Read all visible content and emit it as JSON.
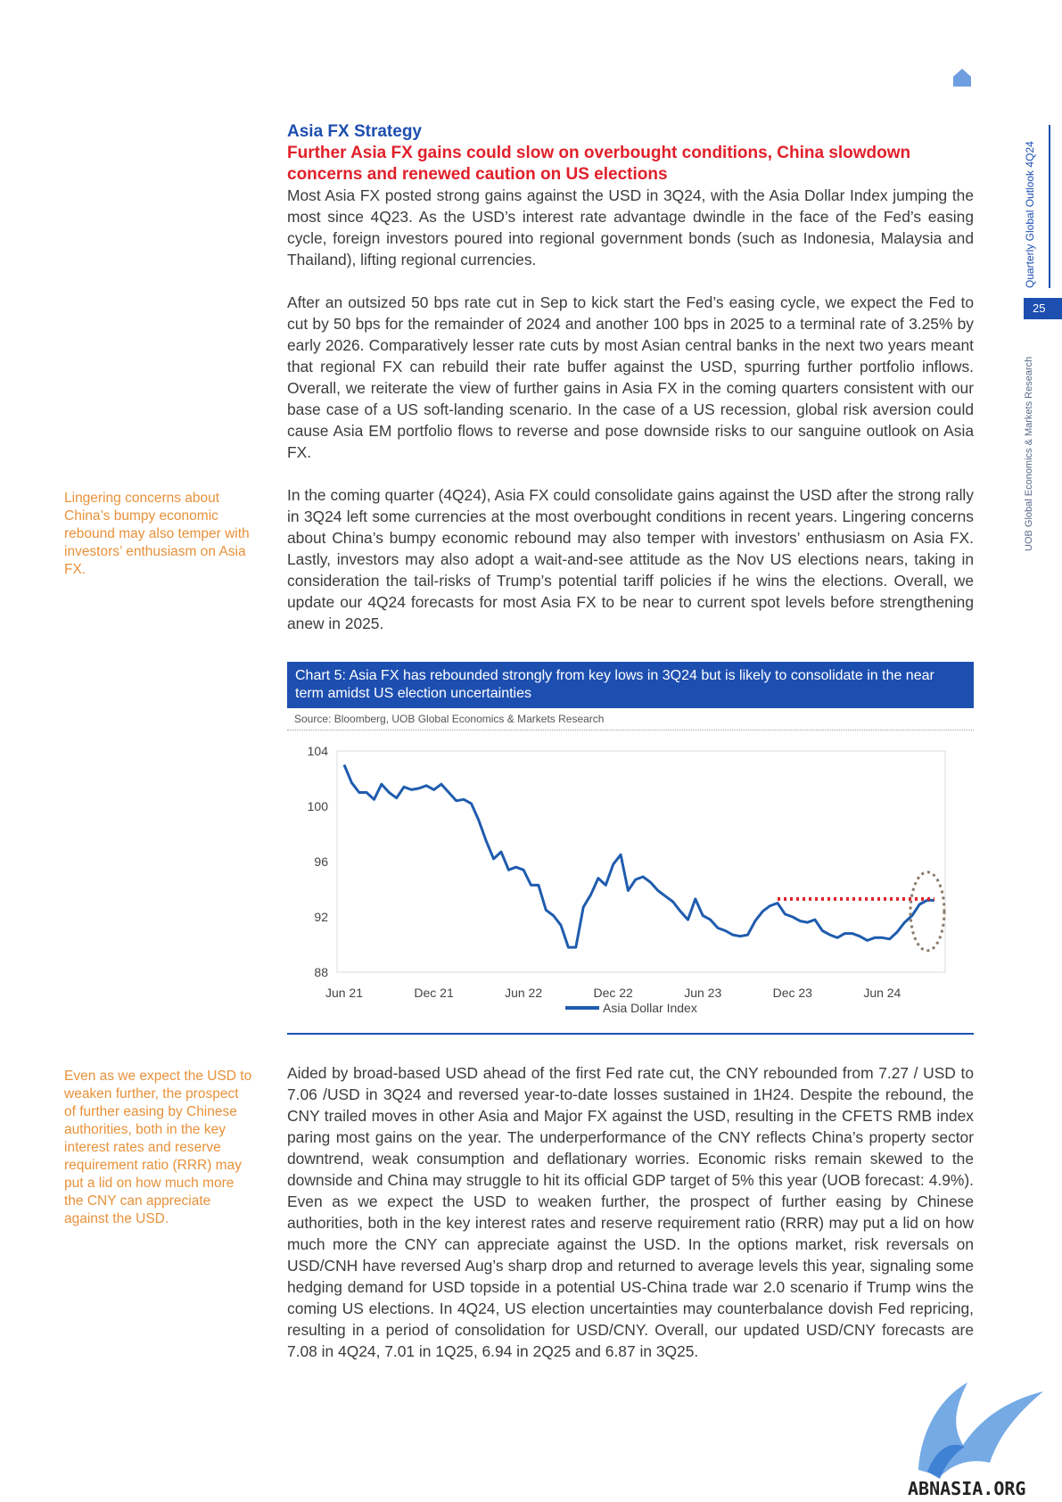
{
  "header": {
    "side_title": "Quarterly Global Outlook 4Q24",
    "page_number": "25",
    "side_subtitle": "UOB Global Economics & Markets Research"
  },
  "section": {
    "title": "Asia FX Strategy",
    "headline": "Further Asia FX gains could slow on overbought conditions, China slowdown concerns and renewed caution on US elections"
  },
  "paragraphs": [
    "Most Asia FX posted strong gains against the USD in 3Q24, with the Asia Dollar Index jumping the most since 4Q23. As the USD’s interest rate advantage dwindle in the face of the Fed’s easing cycle, foreign investors poured into regional government bonds (such as Indonesia, Malaysia and Thailand), lifting regional currencies.",
    "After an outsized 50 bps rate cut in Sep to kick start the Fed’s easing cycle, we expect the Fed to cut by 50 bps for the remainder of 2024 and another 100 bps in 2025 to a terminal rate of 3.25% by early 2026. Comparatively lesser rate cuts by most Asian central banks in the next two years meant that regional FX can rebuild their rate buffer against the USD, spurring further portfolio inflows. Overall, we reiterate the view of further gains in Asia FX in the coming quarters consistent with our base case of a US soft-landing scenario. In the case of a US recession, global risk aversion could cause Asia EM portfolio flows to reverse and pose downside risks to our sanguine outlook on Asia FX.",
    "In the coming quarter (4Q24), Asia FX could consolidate gains against the USD after the strong rally in 3Q24 left some currencies at the most overbought conditions in recent years. Lingering concerns about China’s bumpy economic rebound may also temper with investors’ enthusiasm on Asia FX. Lastly, investors may also adopt a wait-and-see attitude as the Nov US elections nears, taking in consideration the tail-risks of Trump’s potential tariff policies if he wins the elections. Overall, we update our 4Q24 forecasts for most Asia FX to be near to current spot levels before strengthening anew in 2025.",
    "Aided by broad-based USD ahead of the first Fed rate cut, the CNY rebounded from 7.27 / USD to 7.06 /USD in 3Q24 and reversed year-to-date losses sustained in 1H24. Despite the rebound, the CNY trailed moves in other Asia and Major FX against the USD, resulting in the CFETS RMB index paring most gains on the year. The underperformance of the CNY reflects China’s property sector downtrend, weak consumption and deflationary worries. Economic risks remain skewed to the downside and China may struggle to hit its official GDP target of 5% this year (UOB forecast: 4.9%). Even as we expect the USD to weaken further, the prospect of further easing by Chinese authorities, both in the key interest rates and reserve requirement ratio (RRR) may put a lid on how much more the CNY can appreciate against the USD. In the options market, risk reversals on USD/CNH have reversed Aug’s sharp drop and returned to average levels this year, signaling some hedging demand for USD topside in a potential US-China trade war 2.0 scenario if Trump wins the coming US elections. In 4Q24, US election uncertainties may counterbalance dovish Fed repricing, resulting in a period of consolidation for USD/CNY. Overall, our updated USD/CNY forecasts are 7.08 in 4Q24, 7.01 in 1Q25, 6.94 in 2Q25 and 6.87 in 3Q25."
  ],
  "sidenotes": [
    "Lingering concerns about China’s bumpy economic rebound may also temper with investors’ enthusiasm on Asia FX.",
    "Even as we expect the USD to weaken further, the prospect of further easing by Chinese authorities, both in the key interest rates and reserve requirement ratio (RRR) may put a lid on how much more the CNY can appreciate against the USD."
  ],
  "chart_caption": "Chart 5: Asia FX has rebounded strongly from key lows in 3Q24 but is likely to consolidate in the near term amidst US election uncertainties",
  "chart_source": "Source: Bloomberg, UOB Global Economics & Markets Research",
  "watermark_text": "ABNASIA.ORG",
  "colors": {
    "brand_blue": "#1d4fb0",
    "headline_red": "#e0202a",
    "sidenote_orange": "#e8913a",
    "series_blue": "#1f5cae",
    "marker_red": "#e0202a"
  },
  "chart_data": {
    "type": "line",
    "title": "",
    "xlabel": "",
    "ylabel": "",
    "ylim": [
      88,
      104
    ],
    "yticks": [
      "104",
      "100",
      "96",
      "92",
      "88"
    ],
    "xtick_labels": [
      "Jun 21",
      "Dec 21",
      "Jun 22",
      "Dec 22",
      "Jun 23",
      "Dec 23",
      "Jun 24"
    ],
    "grid": false,
    "legend": "bottom",
    "series": [
      {
        "name": "Asia Dollar Index",
        "x": [
          "2021-06",
          "2021-06",
          "2021-07",
          "2021-07",
          "2021-08",
          "2021-08",
          "2021-09",
          "2021-09",
          "2021-10",
          "2021-10",
          "2021-11",
          "2021-11",
          "2021-12",
          "2021-12",
          "2022-01",
          "2022-01",
          "2022-02",
          "2022-02",
          "2022-03",
          "2022-03",
          "2022-04",
          "2022-04",
          "2022-05",
          "2022-05",
          "2022-06",
          "2022-06",
          "2022-07",
          "2022-07",
          "2022-08",
          "2022-08",
          "2022-09",
          "2022-09",
          "2022-10",
          "2022-10",
          "2022-11",
          "2022-11",
          "2022-12",
          "2022-12",
          "2023-01",
          "2023-01",
          "2023-02",
          "2023-02",
          "2023-03",
          "2023-03",
          "2023-04",
          "2023-04",
          "2023-05",
          "2023-05",
          "2023-06",
          "2023-06",
          "2023-07",
          "2023-07",
          "2023-08",
          "2023-08",
          "2023-09",
          "2023-09",
          "2023-10",
          "2023-10",
          "2023-11",
          "2023-11",
          "2023-12",
          "2023-12",
          "2024-01",
          "2024-01",
          "2024-02",
          "2024-02",
          "2024-03",
          "2024-03",
          "2024-04",
          "2024-04",
          "2024-05",
          "2024-05",
          "2024-06",
          "2024-06",
          "2024-07",
          "2024-07",
          "2024-08",
          "2024-08",
          "2024-09",
          "2024-09"
        ],
        "y": [
          103.0,
          101.7,
          101.0,
          101.0,
          100.5,
          101.6,
          101.0,
          100.6,
          101.4,
          101.2,
          101.3,
          101.5,
          101.2,
          101.6,
          101.0,
          100.4,
          100.5,
          100.2,
          99.0,
          97.5,
          96.2,
          96.7,
          95.4,
          95.6,
          95.4,
          94.3,
          94.3,
          92.5,
          92.1,
          91.4,
          89.8,
          89.8,
          92.7,
          93.6,
          94.8,
          94.3,
          95.8,
          96.5,
          93.9,
          94.7,
          94.9,
          94.5,
          93.9,
          93.5,
          93.1,
          92.4,
          91.8,
          93.3,
          92.1,
          91.8,
          91.2,
          91.0,
          90.7,
          90.6,
          90.7,
          91.7,
          92.4,
          92.8,
          93.0,
          92.2,
          92.0,
          91.7,
          91.6,
          91.8,
          91.0,
          90.7,
          90.5,
          90.8,
          90.8,
          90.6,
          90.3,
          90.5,
          90.5,
          90.4,
          90.9,
          91.6,
          92.1,
          92.9,
          93.2,
          93.2
        ]
      }
    ],
    "annotations": [
      {
        "type": "reference_line",
        "y": 93.3,
        "x_from": "2023-11",
        "x_to": "2024-09"
      },
      {
        "type": "ellipse",
        "around": "2024-09"
      }
    ]
  }
}
